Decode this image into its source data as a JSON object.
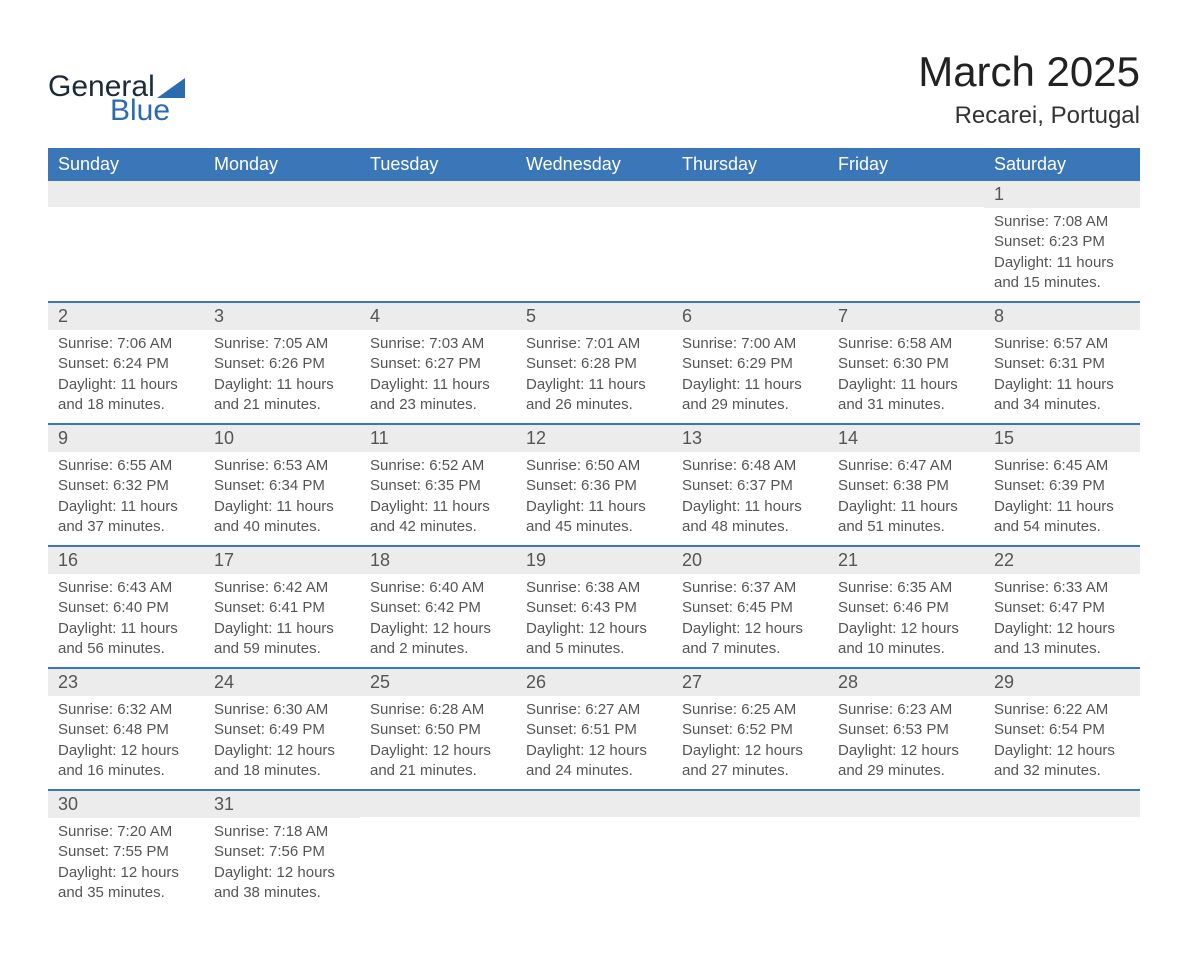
{
  "logo": {
    "word1": "General",
    "word2": "Blue",
    "triangle_color": "#2b6cb0"
  },
  "title": "March 2025",
  "location": "Recarei, Portugal",
  "colors": {
    "header_bg": "#3a76b8",
    "header_text": "#ffffff",
    "daynum_bg": "#ececec",
    "row_separator": "#3a76b8",
    "body_text": "#555555",
    "background": "#ffffff"
  },
  "typography": {
    "title_fontsize": 42,
    "location_fontsize": 24,
    "dayheader_fontsize": 18,
    "daynum_fontsize": 18,
    "cell_fontsize": 15,
    "font_family": "Arial"
  },
  "day_names": [
    "Sunday",
    "Monday",
    "Tuesday",
    "Wednesday",
    "Thursday",
    "Friday",
    "Saturday"
  ],
  "weeks": [
    [
      {
        "day": "",
        "sunrise": "",
        "sunset": "",
        "daylight": ""
      },
      {
        "day": "",
        "sunrise": "",
        "sunset": "",
        "daylight": ""
      },
      {
        "day": "",
        "sunrise": "",
        "sunset": "",
        "daylight": ""
      },
      {
        "day": "",
        "sunrise": "",
        "sunset": "",
        "daylight": ""
      },
      {
        "day": "",
        "sunrise": "",
        "sunset": "",
        "daylight": ""
      },
      {
        "day": "",
        "sunrise": "",
        "sunset": "",
        "daylight": ""
      },
      {
        "day": "1",
        "sunrise": "Sunrise: 7:08 AM",
        "sunset": "Sunset: 6:23 PM",
        "daylight": "Daylight: 11 hours and 15 minutes."
      }
    ],
    [
      {
        "day": "2",
        "sunrise": "Sunrise: 7:06 AM",
        "sunset": "Sunset: 6:24 PM",
        "daylight": "Daylight: 11 hours and 18 minutes."
      },
      {
        "day": "3",
        "sunrise": "Sunrise: 7:05 AM",
        "sunset": "Sunset: 6:26 PM",
        "daylight": "Daylight: 11 hours and 21 minutes."
      },
      {
        "day": "4",
        "sunrise": "Sunrise: 7:03 AM",
        "sunset": "Sunset: 6:27 PM",
        "daylight": "Daylight: 11 hours and 23 minutes."
      },
      {
        "day": "5",
        "sunrise": "Sunrise: 7:01 AM",
        "sunset": "Sunset: 6:28 PM",
        "daylight": "Daylight: 11 hours and 26 minutes."
      },
      {
        "day": "6",
        "sunrise": "Sunrise: 7:00 AM",
        "sunset": "Sunset: 6:29 PM",
        "daylight": "Daylight: 11 hours and 29 minutes."
      },
      {
        "day": "7",
        "sunrise": "Sunrise: 6:58 AM",
        "sunset": "Sunset: 6:30 PM",
        "daylight": "Daylight: 11 hours and 31 minutes."
      },
      {
        "day": "8",
        "sunrise": "Sunrise: 6:57 AM",
        "sunset": "Sunset: 6:31 PM",
        "daylight": "Daylight: 11 hours and 34 minutes."
      }
    ],
    [
      {
        "day": "9",
        "sunrise": "Sunrise: 6:55 AM",
        "sunset": "Sunset: 6:32 PM",
        "daylight": "Daylight: 11 hours and 37 minutes."
      },
      {
        "day": "10",
        "sunrise": "Sunrise: 6:53 AM",
        "sunset": "Sunset: 6:34 PM",
        "daylight": "Daylight: 11 hours and 40 minutes."
      },
      {
        "day": "11",
        "sunrise": "Sunrise: 6:52 AM",
        "sunset": "Sunset: 6:35 PM",
        "daylight": "Daylight: 11 hours and 42 minutes."
      },
      {
        "day": "12",
        "sunrise": "Sunrise: 6:50 AM",
        "sunset": "Sunset: 6:36 PM",
        "daylight": "Daylight: 11 hours and 45 minutes."
      },
      {
        "day": "13",
        "sunrise": "Sunrise: 6:48 AM",
        "sunset": "Sunset: 6:37 PM",
        "daylight": "Daylight: 11 hours and 48 minutes."
      },
      {
        "day": "14",
        "sunrise": "Sunrise: 6:47 AM",
        "sunset": "Sunset: 6:38 PM",
        "daylight": "Daylight: 11 hours and 51 minutes."
      },
      {
        "day": "15",
        "sunrise": "Sunrise: 6:45 AM",
        "sunset": "Sunset: 6:39 PM",
        "daylight": "Daylight: 11 hours and 54 minutes."
      }
    ],
    [
      {
        "day": "16",
        "sunrise": "Sunrise: 6:43 AM",
        "sunset": "Sunset: 6:40 PM",
        "daylight": "Daylight: 11 hours and 56 minutes."
      },
      {
        "day": "17",
        "sunrise": "Sunrise: 6:42 AM",
        "sunset": "Sunset: 6:41 PM",
        "daylight": "Daylight: 11 hours and 59 minutes."
      },
      {
        "day": "18",
        "sunrise": "Sunrise: 6:40 AM",
        "sunset": "Sunset: 6:42 PM",
        "daylight": "Daylight: 12 hours and 2 minutes."
      },
      {
        "day": "19",
        "sunrise": "Sunrise: 6:38 AM",
        "sunset": "Sunset: 6:43 PM",
        "daylight": "Daylight: 12 hours and 5 minutes."
      },
      {
        "day": "20",
        "sunrise": "Sunrise: 6:37 AM",
        "sunset": "Sunset: 6:45 PM",
        "daylight": "Daylight: 12 hours and 7 minutes."
      },
      {
        "day": "21",
        "sunrise": "Sunrise: 6:35 AM",
        "sunset": "Sunset: 6:46 PM",
        "daylight": "Daylight: 12 hours and 10 minutes."
      },
      {
        "day": "22",
        "sunrise": "Sunrise: 6:33 AM",
        "sunset": "Sunset: 6:47 PM",
        "daylight": "Daylight: 12 hours and 13 minutes."
      }
    ],
    [
      {
        "day": "23",
        "sunrise": "Sunrise: 6:32 AM",
        "sunset": "Sunset: 6:48 PM",
        "daylight": "Daylight: 12 hours and 16 minutes."
      },
      {
        "day": "24",
        "sunrise": "Sunrise: 6:30 AM",
        "sunset": "Sunset: 6:49 PM",
        "daylight": "Daylight: 12 hours and 18 minutes."
      },
      {
        "day": "25",
        "sunrise": "Sunrise: 6:28 AM",
        "sunset": "Sunset: 6:50 PM",
        "daylight": "Daylight: 12 hours and 21 minutes."
      },
      {
        "day": "26",
        "sunrise": "Sunrise: 6:27 AM",
        "sunset": "Sunset: 6:51 PM",
        "daylight": "Daylight: 12 hours and 24 minutes."
      },
      {
        "day": "27",
        "sunrise": "Sunrise: 6:25 AM",
        "sunset": "Sunset: 6:52 PM",
        "daylight": "Daylight: 12 hours and 27 minutes."
      },
      {
        "day": "28",
        "sunrise": "Sunrise: 6:23 AM",
        "sunset": "Sunset: 6:53 PM",
        "daylight": "Daylight: 12 hours and 29 minutes."
      },
      {
        "day": "29",
        "sunrise": "Sunrise: 6:22 AM",
        "sunset": "Sunset: 6:54 PM",
        "daylight": "Daylight: 12 hours and 32 minutes."
      }
    ],
    [
      {
        "day": "30",
        "sunrise": "Sunrise: 7:20 AM",
        "sunset": "Sunset: 7:55 PM",
        "daylight": "Daylight: 12 hours and 35 minutes."
      },
      {
        "day": "31",
        "sunrise": "Sunrise: 7:18 AM",
        "sunset": "Sunset: 7:56 PM",
        "daylight": "Daylight: 12 hours and 38 minutes."
      },
      {
        "day": "",
        "sunrise": "",
        "sunset": "",
        "daylight": ""
      },
      {
        "day": "",
        "sunrise": "",
        "sunset": "",
        "daylight": ""
      },
      {
        "day": "",
        "sunrise": "",
        "sunset": "",
        "daylight": ""
      },
      {
        "day": "",
        "sunrise": "",
        "sunset": "",
        "daylight": ""
      },
      {
        "day": "",
        "sunrise": "",
        "sunset": "",
        "daylight": ""
      }
    ]
  ]
}
